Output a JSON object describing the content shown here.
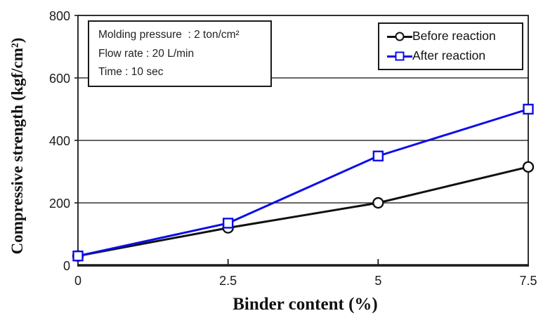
{
  "chart_data": {
    "type": "line",
    "x": [
      0,
      2.5,
      5,
      7.5
    ],
    "series": [
      {
        "name": "Before reaction",
        "marker": "circle",
        "color": "#111111",
        "values": [
          30,
          120,
          200,
          315
        ]
      },
      {
        "name": "After reaction",
        "marker": "square",
        "color": "#0d0de8",
        "values": [
          30,
          135,
          350,
          500
        ]
      }
    ],
    "title": "",
    "xlabel": "Binder content (%)",
    "ylabel": "Compressive strength (kgf/cm²)",
    "xlim": [
      0,
      7.5
    ],
    "ylim": [
      0,
      800
    ],
    "xticks": [
      0,
      2.5,
      5,
      7.5
    ],
    "xtick_labels": [
      "0",
      "2.5",
      "5",
      "7.5"
    ],
    "yticks": [
      0,
      200,
      400,
      600,
      800
    ],
    "ytick_labels": [
      "0",
      "200",
      "400",
      "600",
      "800"
    ],
    "grid": "horizontal",
    "legend_position": "top-right"
  },
  "annotation": {
    "lines": [
      "Molding pressure  : 2 ton/cm²",
      "Flow rate : 20 L/min",
      "Time : 10 sec"
    ]
  },
  "colors": {
    "axis": "#1a1a1a",
    "grid": "#333333",
    "background": "#ffffff",
    "before_series": "#111111",
    "after_series": "#0d0de8"
  }
}
